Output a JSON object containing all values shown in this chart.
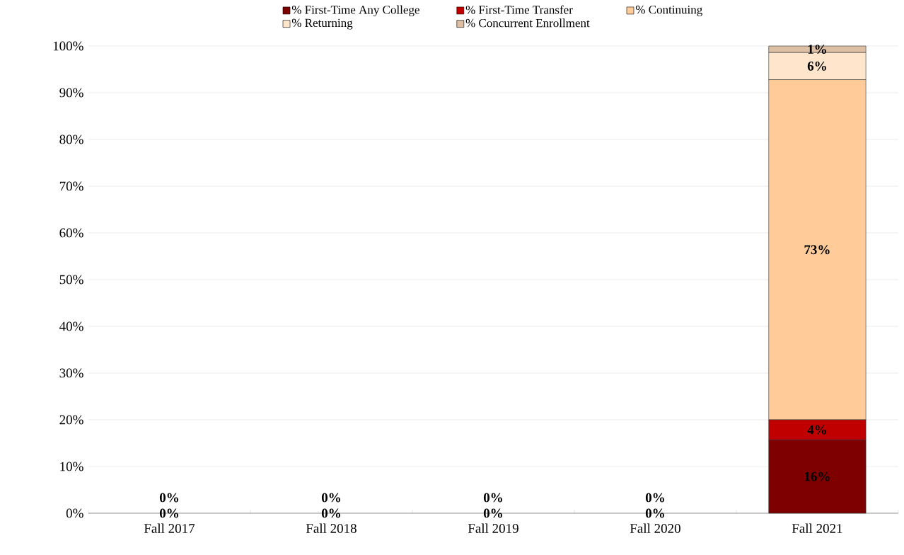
{
  "chart_data": {
    "type": "bar",
    "stacked": true,
    "categories": [
      "Fall 2017",
      "Fall 2018",
      "Fall 2019",
      "Fall 2020",
      "Fall 2021"
    ],
    "series": [
      {
        "name": "% First-Time Any College",
        "color": "#7f0000",
        "values": [
          0,
          0,
          0,
          0,
          15.7
        ],
        "value_labels": [
          "0%",
          "0%",
          "0%",
          "0%",
          "16%"
        ]
      },
      {
        "name": "% First-Time Transfer",
        "color": "#c00000",
        "values": [
          0,
          0,
          0,
          0,
          4.3
        ],
        "value_labels": [
          "0%",
          "0%",
          "0%",
          "0%",
          "4%"
        ]
      },
      {
        "name": "% Continuing",
        "color": "#ffcc99",
        "values": [
          0,
          0,
          0,
          0,
          72.8
        ],
        "value_labels": [
          null,
          null,
          null,
          null,
          "73%"
        ]
      },
      {
        "name": "% Returning",
        "color": "#ffe5cc",
        "values": [
          0,
          0,
          0,
          0,
          5.8
        ],
        "value_labels": [
          null,
          null,
          null,
          null,
          "6%"
        ]
      },
      {
        "name": "% Concurrent Enrollment",
        "color": "#ddbfa3",
        "values": [
          0,
          0,
          0,
          0,
          1.4
        ],
        "value_labels": [
          null,
          null,
          null,
          null,
          "1%"
        ]
      }
    ],
    "ylim": [
      0,
      100
    ],
    "yticks": [
      {
        "value": 0,
        "label": "0%"
      },
      {
        "value": 10,
        "label": "10%"
      },
      {
        "value": 20,
        "label": "20%"
      },
      {
        "value": 30,
        "label": "30%"
      },
      {
        "value": 40,
        "label": "40%"
      },
      {
        "value": 50,
        "label": "50%"
      },
      {
        "value": 60,
        "label": "60%"
      },
      {
        "value": 70,
        "label": "70%"
      },
      {
        "value": 80,
        "label": "80%"
      },
      {
        "value": 90,
        "label": "90%"
      },
      {
        "value": 100,
        "label": "100%"
      }
    ],
    "grid": "y",
    "legend": "top"
  }
}
